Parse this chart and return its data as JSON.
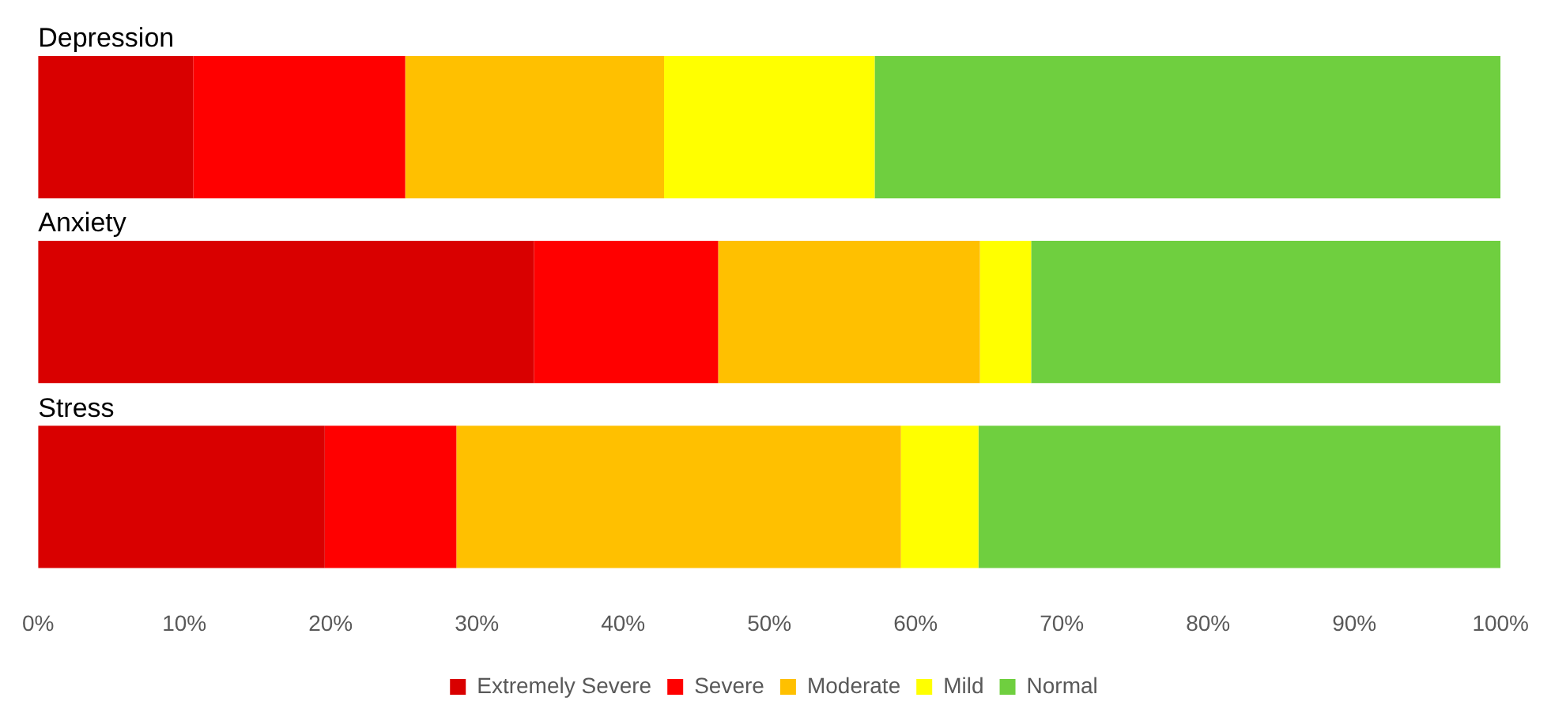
{
  "chart_data": {
    "type": "bar",
    "orientation": "horizontal",
    "stacked": true,
    "categories": [
      "Depression",
      "Anxiety",
      "Stress"
    ],
    "series": [
      {
        "name": "Extremely Severe",
        "color": "#d90000",
        "values": [
          10.6,
          33.9,
          19.6
        ]
      },
      {
        "name": "Severe",
        "color": "#ff0000",
        "values": [
          14.5,
          12.6,
          9.0
        ]
      },
      {
        "name": "Moderate",
        "color": "#ffc000",
        "values": [
          17.7,
          17.9,
          30.4
        ]
      },
      {
        "name": "Mild",
        "color": "#ffff00",
        "values": [
          14.4,
          3.5,
          5.3
        ]
      },
      {
        "name": "Normal",
        "color": "#6fcf3f",
        "values": [
          42.8,
          32.1,
          35.7
        ]
      }
    ],
    "xlim": [
      0,
      100
    ],
    "xticks": [
      {
        "value": 0,
        "label": "0%"
      },
      {
        "value": 10,
        "label": "10%"
      },
      {
        "value": 20,
        "label": "20%"
      },
      {
        "value": 30,
        "label": "30%"
      },
      {
        "value": 40,
        "label": "40%"
      },
      {
        "value": 50,
        "label": "50%"
      },
      {
        "value": 60,
        "label": "60%"
      },
      {
        "value": 70,
        "label": "70%"
      },
      {
        "value": 80,
        "label": "80%"
      },
      {
        "value": 90,
        "label": "90%"
      },
      {
        "value": 100,
        "label": "100%"
      }
    ],
    "grid": false,
    "legend": "bottom"
  }
}
